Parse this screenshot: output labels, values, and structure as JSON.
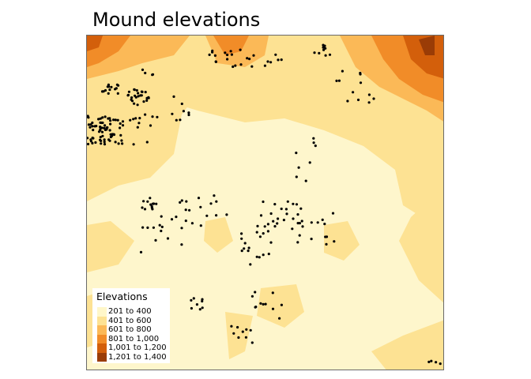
{
  "title": "Mound elevations",
  "legend": {
    "title": "Elevations",
    "classes": [
      {
        "label": "201 to 400",
        "color": "#fff7c9"
      },
      {
        "label": "401 to 600",
        "color": "#fde293"
      },
      {
        "label": "601 to 800",
        "color": "#fbb957"
      },
      {
        "label": "801 to 1,000",
        "color": "#f18c28"
      },
      {
        "label": "1,001 to 1,200",
        "color": "#d35f0b"
      },
      {
        "label": "1,201 to 1,400",
        "color": "#9a3c06"
      }
    ]
  }
}
